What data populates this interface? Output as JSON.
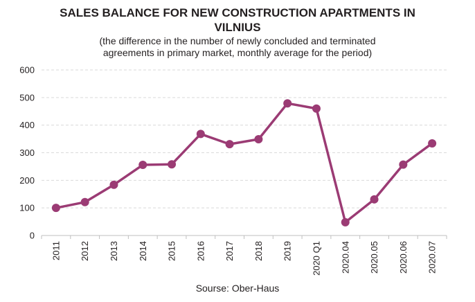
{
  "title_line1": "SALES BALANCE FOR NEW CONSTRUCTION APARTMENTS IN",
  "title_line2": "VILNIUS",
  "subtitle_line1": "(the difference in the number of newly concluded and terminated",
  "subtitle_line2": "agreements in primary market, monthly average for the period)",
  "source": "Sourse: Ober-Haus",
  "colors": {
    "line": "#9b3b74",
    "grid": "#d9d9d9",
    "axis": "#bfbfbf"
  },
  "chart_data": {
    "type": "line",
    "title": "SALES BALANCE FOR NEW CONSTRUCTION APARTMENTS IN VILNIUS",
    "subtitle": "(the difference in the number of newly concluded and terminated agreements in primary market, monthly average for the period)",
    "categories": [
      "2011",
      "2012",
      "2013",
      "2014",
      "2015",
      "2016",
      "2017",
      "2018",
      "2019",
      "2020 Q1",
      "2020.04",
      "2020.05",
      "2020.06",
      "2020.07"
    ],
    "values": [
      100,
      121,
      184,
      256,
      258,
      368,
      331,
      349,
      479,
      460,
      48,
      131,
      257,
      334
    ],
    "xlabel": "",
    "ylabel": "",
    "ylim": [
      0,
      600
    ],
    "yticks": [
      0,
      100,
      200,
      300,
      400,
      500,
      600
    ],
    "grid": true,
    "legend": "none",
    "marker": "circle"
  }
}
